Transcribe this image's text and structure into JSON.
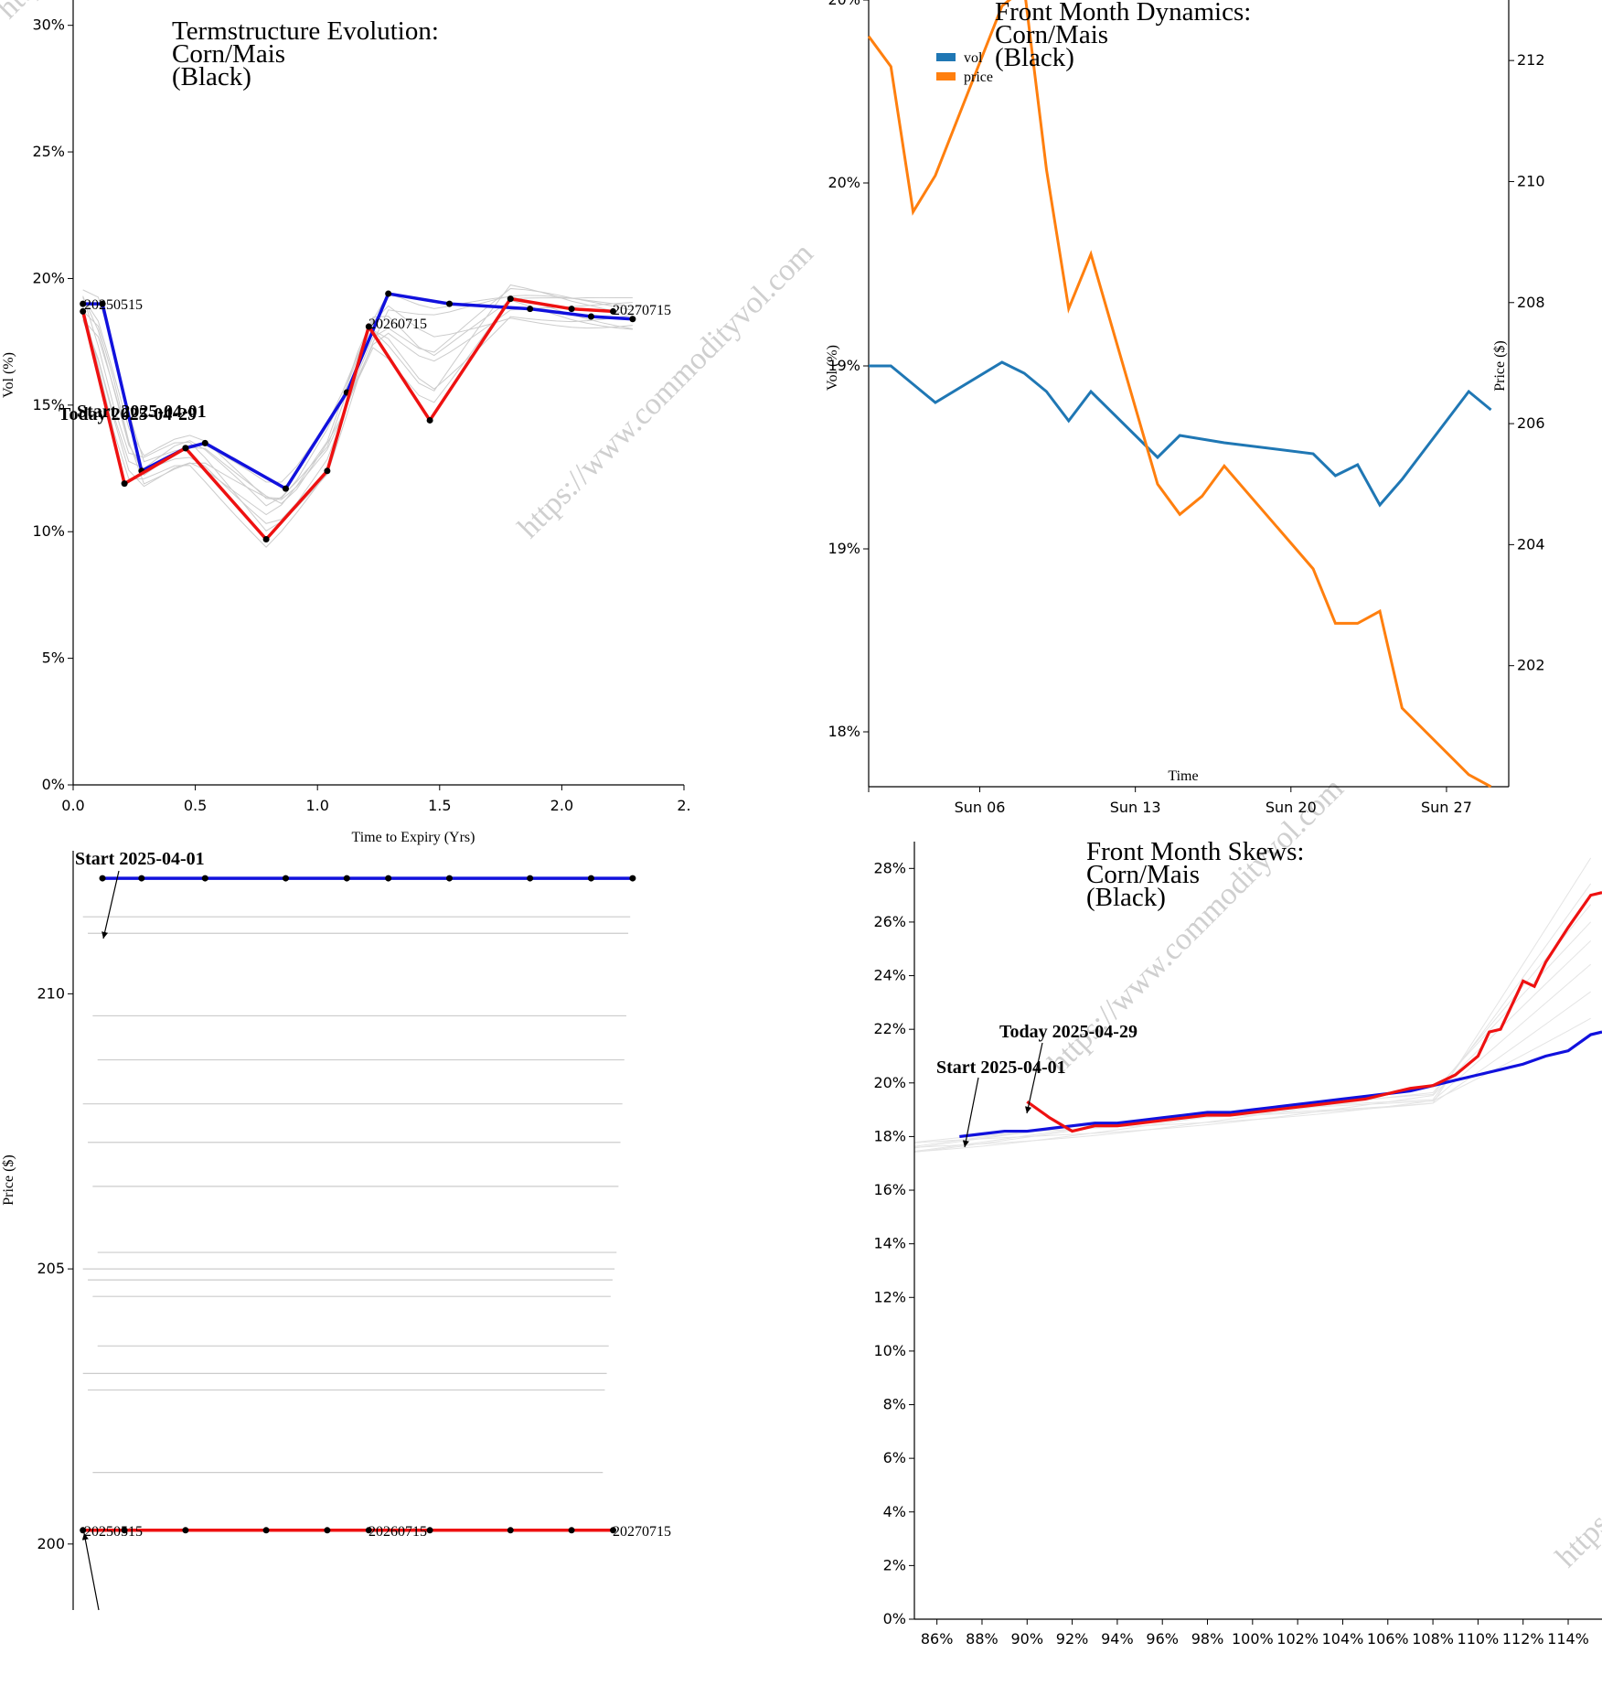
{
  "watermark": "https://www.commodityvol.com",
  "colors": {
    "today": "#ee1111",
    "start": "#1111dd",
    "history": "#cccccc",
    "vol": "#1f77b4",
    "price": "#ff7f0e"
  },
  "chart_data": [
    {
      "id": "termstructure",
      "type": "line",
      "title": [
        "Termstructure Evolution:",
        "Corn/Mais",
        "(Black)"
      ],
      "xlabel": "Time to Expiry (Yrs)",
      "ylabel": "Vol (%)",
      "xlim": [
        0,
        2.5
      ],
      "ylim": [
        0,
        0.31
      ],
      "xticks": [
        "0.0",
        "0.5",
        "1.0",
        "1.5",
        "2.0",
        "2."
      ],
      "yticks": [
        "0%",
        "5%",
        "10%",
        "15%",
        "20%",
        "25%",
        "30%"
      ],
      "series": [
        {
          "name": "Start 2025-04-01",
          "x": [
            0.04,
            0.12,
            0.28,
            0.46,
            0.54,
            0.87,
            1.12,
            1.29,
            1.54,
            1.87,
            2.12,
            2.29
          ],
          "y": [
            0.19,
            0.19,
            0.124,
            0.133,
            0.135,
            0.117,
            0.155,
            0.194,
            0.19,
            0.188,
            0.185,
            0.184
          ]
        },
        {
          "name": "Today 2025-04-29",
          "x": [
            0.04,
            0.21,
            0.46,
            0.79,
            1.04,
            1.21,
            1.46,
            1.79,
            2.04,
            2.21
          ],
          "y": [
            0.187,
            0.119,
            0.133,
            0.097,
            0.124,
            0.181,
            0.144,
            0.192,
            0.188,
            0.187
          ]
        }
      ],
      "labels": [
        "20250515",
        "20260715",
        "20270715"
      ],
      "annotations": [
        "Start 2025-04-01",
        "Today 2025-04-29"
      ]
    },
    {
      "id": "front-month-dynamics",
      "type": "line",
      "title": [
        "Front Month Dynamics:",
        "Corn/Mais",
        "(Black)"
      ],
      "xlabel": "Time",
      "ylabel_left": "Vol (%)",
      "ylabel_right": "Price ($)",
      "xticks": [
        "Sun 06",
        "Sun 13",
        "Sun 20",
        "Sun 27"
      ],
      "yticks_left": [
        "18%",
        "19%",
        "19%",
        "20%",
        "20%"
      ],
      "yticks_right": [
        "202",
        "204",
        "206",
        "208",
        "210",
        "212"
      ],
      "legend": [
        "vol",
        "price"
      ],
      "legend_position": "top-left",
      "x": [
        "Apr 01",
        "Apr 02",
        "Apr 03",
        "Apr 04",
        "Apr 07",
        "Apr 08",
        "Apr 09",
        "Apr 10",
        "Apr 11",
        "Apr 14",
        "Apr 15",
        "Apr 16",
        "Apr 17",
        "Apr 21",
        "Apr 22",
        "Apr 23",
        "Apr 24",
        "Apr 25",
        "Apr 28",
        "Apr 29"
      ],
      "vol": [
        19.0,
        19.0,
        18.95,
        18.9,
        19.01,
        18.98,
        18.93,
        18.85,
        18.93,
        18.75,
        18.81,
        18.8,
        18.79,
        18.76,
        18.7,
        18.73,
        18.62,
        18.69,
        18.93,
        18.88
      ],
      "price": [
        212.4,
        211.9,
        209.5,
        210.1,
        212.9,
        213.2,
        210.2,
        207.9,
        208.8,
        205.0,
        204.5,
        204.8,
        205.3,
        203.6,
        202.7,
        202.7,
        202.9,
        201.3,
        200.2,
        200.0
      ],
      "vol_ylim": [
        17.85,
        20.0
      ],
      "price_ylim": [
        200.0,
        213.0
      ]
    },
    {
      "id": "price-termstructure",
      "type": "line",
      "ylabel": "Price ($)",
      "ylim": [
        198.8,
        212.6
      ],
      "yticks": [
        "200",
        "205",
        "210"
      ],
      "series": [
        {
          "name": "Start 2025-04-01",
          "x": [
            0.12,
            0.28,
            0.54,
            0.87,
            1.12,
            1.29,
            1.54,
            1.87,
            2.12,
            2.29
          ],
          "y": [
            212.1,
            212.1,
            212.1,
            212.1,
            212.1,
            212.1,
            212.1,
            212.1,
            212.1,
            212.1
          ]
        },
        {
          "name": "Today 2025-04-29",
          "x": [
            0.04,
            0.21,
            0.46,
            0.79,
            1.04,
            1.21,
            1.46,
            1.79,
            2.04,
            2.21
          ],
          "y": [
            200.25,
            200.25,
            200.25,
            200.25,
            200.25,
            200.25,
            200.25,
            200.25,
            200.25,
            200.25
          ]
        }
      ],
      "labels": [
        "20250515",
        "20260715",
        "20270715"
      ],
      "annotations": [
        "Start 2025-04-01"
      ]
    },
    {
      "id": "front-month-skews",
      "type": "line",
      "title": [
        "Front Month Skews:",
        "Corn/Mais",
        "(Black)"
      ],
      "xlim": [
        0.85,
        1.155
      ],
      "ylim": [
        0,
        0.29
      ],
      "xticks": [
        "86%",
        "88%",
        "90%",
        "92%",
        "94%",
        "96%",
        "98%",
        "100%",
        "102%",
        "104%",
        "106%",
        "108%",
        "110%",
        "112%",
        "114%"
      ],
      "yticks": [
        "0%",
        "2%",
        "4%",
        "6%",
        "8%",
        "10%",
        "12%",
        "14%",
        "16%",
        "18%",
        "20%",
        "22%",
        "24%",
        "26%",
        "28%"
      ],
      "series": [
        {
          "name": "Start 2025-04-01",
          "x": [
            0.87,
            0.88,
            0.89,
            0.9,
            0.91,
            0.92,
            0.93,
            0.94,
            0.95,
            0.96,
            0.97,
            0.98,
            0.99,
            1.0,
            1.01,
            1.02,
            1.03,
            1.04,
            1.05,
            1.06,
            1.07,
            1.08,
            1.09,
            1.1,
            1.11,
            1.12,
            1.13,
            1.14,
            1.15,
            1.155
          ],
          "y": [
            0.18,
            0.181,
            0.182,
            0.182,
            0.183,
            0.184,
            0.185,
            0.185,
            0.186,
            0.187,
            0.188,
            0.189,
            0.189,
            0.19,
            0.191,
            0.192,
            0.193,
            0.194,
            0.195,
            0.196,
            0.197,
            0.199,
            0.201,
            0.203,
            0.205,
            0.207,
            0.21,
            0.212,
            0.218,
            0.219
          ]
        },
        {
          "name": "Today 2025-04-29",
          "x": [
            0.9,
            0.91,
            0.92,
            0.93,
            0.94,
            0.95,
            0.96,
            0.97,
            0.98,
            0.99,
            1.0,
            1.01,
            1.02,
            1.03,
            1.04,
            1.05,
            1.06,
            1.07,
            1.08,
            1.09,
            1.1,
            1.105,
            1.11,
            1.12,
            1.125,
            1.13,
            1.14,
            1.15,
            1.155
          ],
          "y": [
            0.193,
            0.187,
            0.182,
            0.184,
            0.184,
            0.185,
            0.186,
            0.187,
            0.188,
            0.188,
            0.189,
            0.19,
            0.191,
            0.192,
            0.193,
            0.194,
            0.196,
            0.198,
            0.199,
            0.203,
            0.21,
            0.219,
            0.22,
            0.238,
            0.236,
            0.245,
            0.258,
            0.27,
            0.271
          ]
        }
      ],
      "annotations": [
        "Today 2025-04-29",
        "Start 2025-04-01"
      ]
    }
  ]
}
